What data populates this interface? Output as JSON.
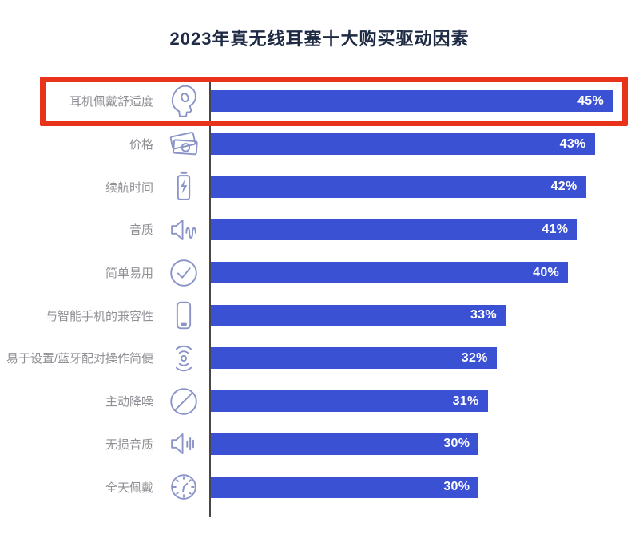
{
  "title": "2023年真无线耳塞十大购买驱动因素",
  "colors": {
    "bar": "#3A51D4",
    "highlight_border": "#E8321A",
    "title_text": "#1F2B45",
    "label_text": "#8F9095",
    "icon_stroke": "#8A94C8",
    "value_text": "#FFFFFF",
    "axis_line": "#46464C"
  },
  "chart_data": {
    "type": "bar",
    "orientation": "horizontal",
    "title": "2023年真无线耳塞十大购买驱动因素",
    "categories": [
      "耳机佩戴舒适度",
      "价格",
      "续航时间",
      "音质",
      "简单易用",
      "与智能手机的兼容性",
      "易于设置/蓝牙配对操作简便",
      "主动降噪",
      "无损音质",
      "全天佩戴"
    ],
    "values": [
      45,
      43,
      42,
      41,
      40,
      33,
      32,
      31,
      30,
      30
    ],
    "value_suffix": "%",
    "xlim": [
      0,
      45
    ],
    "grid": false,
    "legend": false,
    "value_labels": "inside-end",
    "highlighted_index": 0,
    "icons": [
      "head-earbud",
      "money",
      "battery",
      "speaker-wave",
      "check-circle",
      "smartphone",
      "wireless-signal",
      "no-sign",
      "speaker-lines",
      "clock"
    ]
  }
}
